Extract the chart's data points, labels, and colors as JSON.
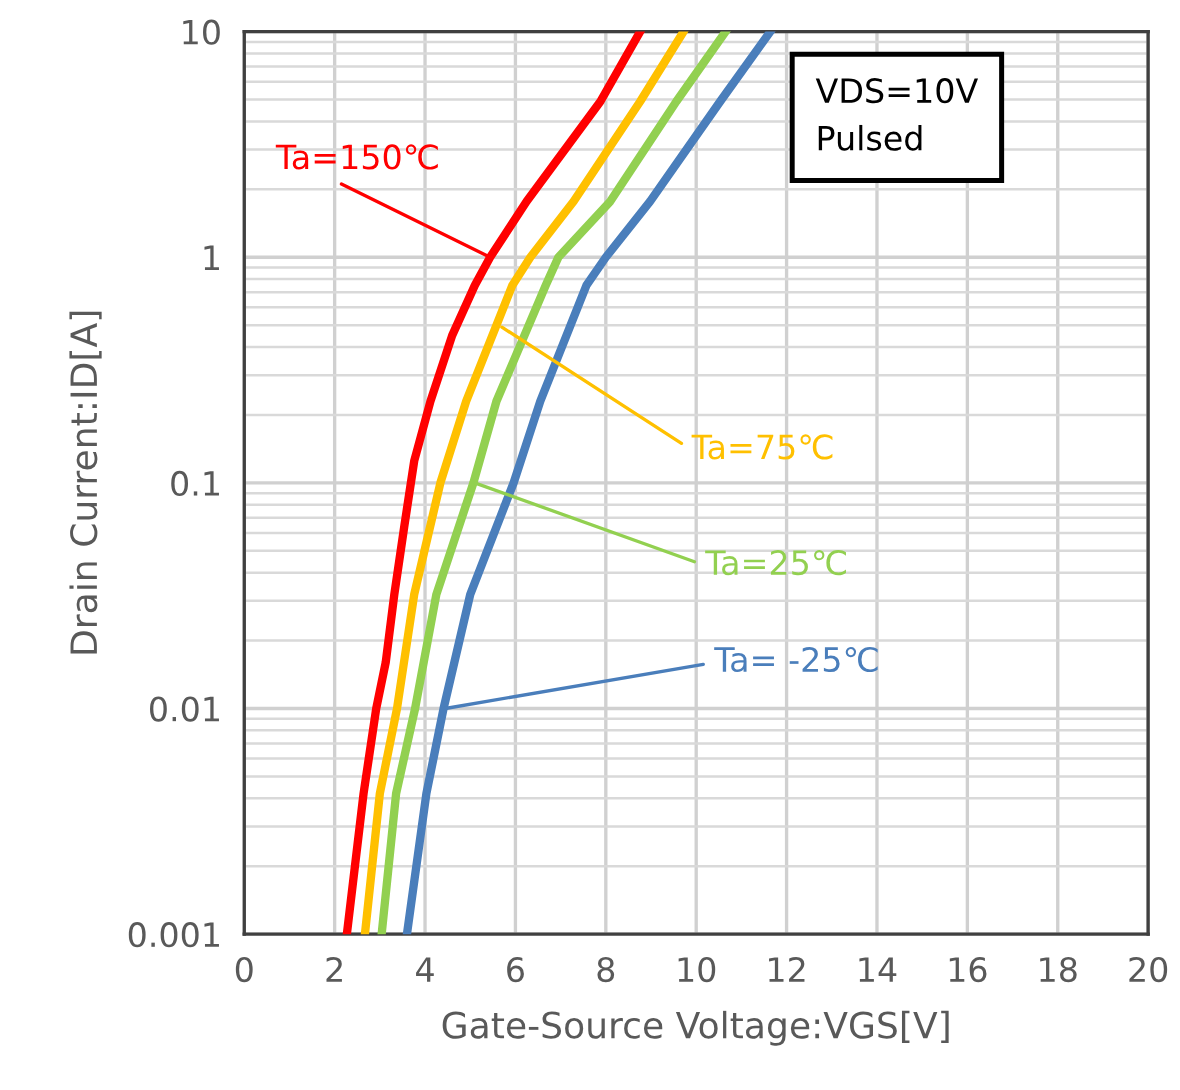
{
  "chart_data": {
    "type": "line",
    "xlabel": "Gate-Source Voltage:VGS[V]",
    "ylabel": "Drain Current:ID[A]",
    "log": "y",
    "grid": true,
    "marker": "none",
    "line_style": "solid",
    "xlim": [
      0,
      20
    ],
    "xticks": [
      0,
      2,
      4,
      6,
      8,
      10,
      12,
      14,
      16,
      18,
      20
    ],
    "ylim": [
      0.001,
      10
    ],
    "yticks": [
      {
        "value": 0.001,
        "label": "0.001"
      },
      {
        "value": 0.01,
        "label": "0.01"
      },
      {
        "value": 0.1,
        "label": "0.1"
      },
      {
        "value": 1,
        "label": "1"
      },
      {
        "value": 10,
        "label": "10"
      }
    ],
    "series": [
      {
        "color": "#ff0000",
        "x": [
          2.27,
          2.64,
          2.92,
          3.13,
          3.32,
          3.54,
          3.76,
          4.12,
          4.6,
          5.1,
          5.44,
          6.25,
          7.88,
          8.76
        ],
        "values": [
          0.001,
          0.0042,
          0.01,
          0.016,
          0.032,
          0.064,
          0.125,
          0.23,
          0.45,
          0.75,
          1,
          1.77,
          4.9,
          10
        ]
      },
      {
        "color": "#ffc000",
        "x": [
          2.67,
          3.0,
          3.38,
          3.76,
          4.34,
          4.91,
          5.93,
          6.33,
          7.29,
          8.76,
          9.72
        ],
        "values": [
          0.001,
          0.0042,
          0.01,
          0.032,
          0.1,
          0.23,
          0.75,
          1,
          1.77,
          4.9,
          10
        ]
      },
      {
        "color": "#92d050",
        "x": [
          3.04,
          3.36,
          3.78,
          4.25,
          5.07,
          5.58,
          6.67,
          6.95,
          8.1,
          9.56,
          10.65
        ],
        "values": [
          0.001,
          0.0042,
          0.01,
          0.032,
          0.1,
          0.23,
          0.75,
          1,
          1.77,
          4.9,
          10
        ]
      },
      {
        "color": "#4a7ebb",
        "x": [
          3.6,
          4.03,
          4.41,
          5.0,
          5.96,
          6.55,
          7.57,
          8.0,
          8.98,
          10.53,
          11.64
        ],
        "values": [
          0.001,
          0.0042,
          0.01,
          0.032,
          0.1,
          0.23,
          0.75,
          1,
          1.77,
          4.9,
          10
        ]
      }
    ],
    "annotations": [
      {
        "text": "Ta=150℃",
        "x": 5.44,
        "y": 1
      },
      {
        "text": "Ta=75℃",
        "x": 5.7,
        "y": 0.49
      },
      {
        "text": "Ta=25℃",
        "x": 5.1,
        "y": 0.1
      },
      {
        "text": "Ta= -25℃",
        "x": 4.45,
        "y": 0.01
      },
      "VDS=10V\nPulsed"
    ]
  }
}
